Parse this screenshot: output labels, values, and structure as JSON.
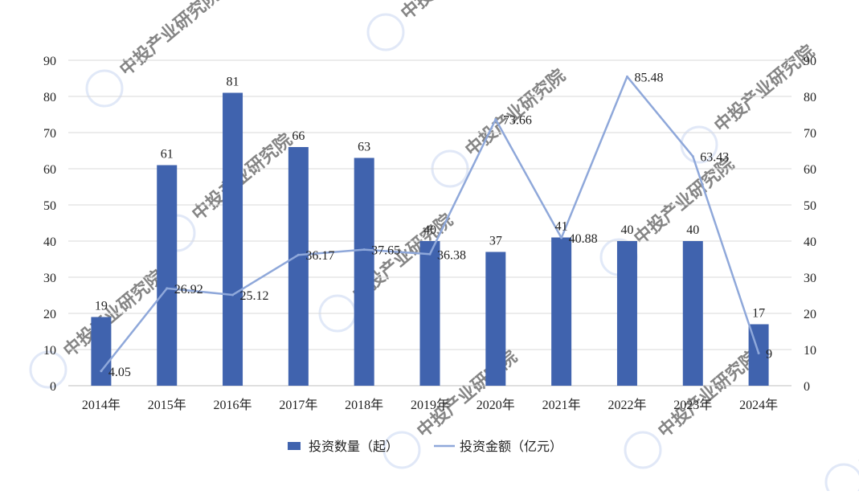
{
  "chart_data": {
    "type": "bar",
    "categories": [
      "2014年",
      "2015年",
      "2016年",
      "2017年",
      "2018年",
      "2019年",
      "2020年",
      "2021年",
      "2022年",
      "2023年",
      "2024年"
    ],
    "series": [
      {
        "name": "投资数量（起）",
        "type": "bar",
        "axis": "left",
        "values": [
          19,
          61,
          81,
          66,
          63,
          40,
          37,
          41,
          40,
          40,
          17
        ],
        "labels": [
          "19",
          "61",
          "81",
          "66",
          "63",
          "40",
          "37",
          "41",
          "40",
          "40",
          "17"
        ],
        "color": "#4063AE"
      },
      {
        "name": "投资金额（亿元）",
        "type": "line",
        "axis": "right",
        "values": [
          4.05,
          26.92,
          25.12,
          36.17,
          37.65,
          36.38,
          73.66,
          40.88,
          85.48,
          63.43,
          9
        ],
        "labels": [
          "4.05",
          "26.92",
          "25.12",
          "36.17",
          "37.65",
          "36.38",
          "73.66",
          "40.88",
          "85.48",
          "63.43",
          "9"
        ],
        "color": "#8FA8DA"
      }
    ],
    "y_left": {
      "min": 0,
      "max": 90,
      "step": 10,
      "ticks": [
        "0",
        "10",
        "20",
        "30",
        "40",
        "50",
        "60",
        "70",
        "80",
        "90"
      ]
    },
    "y_right": {
      "min": 0,
      "max": 90,
      "step": 10,
      "ticks": [
        "0",
        "10",
        "20",
        "30",
        "40",
        "50",
        "60",
        "70",
        "80",
        "90"
      ]
    },
    "grid": true,
    "legend_position": "bottom"
  },
  "watermark": {
    "text": "中投产业研究院",
    "color": "#C9D7F2"
  }
}
